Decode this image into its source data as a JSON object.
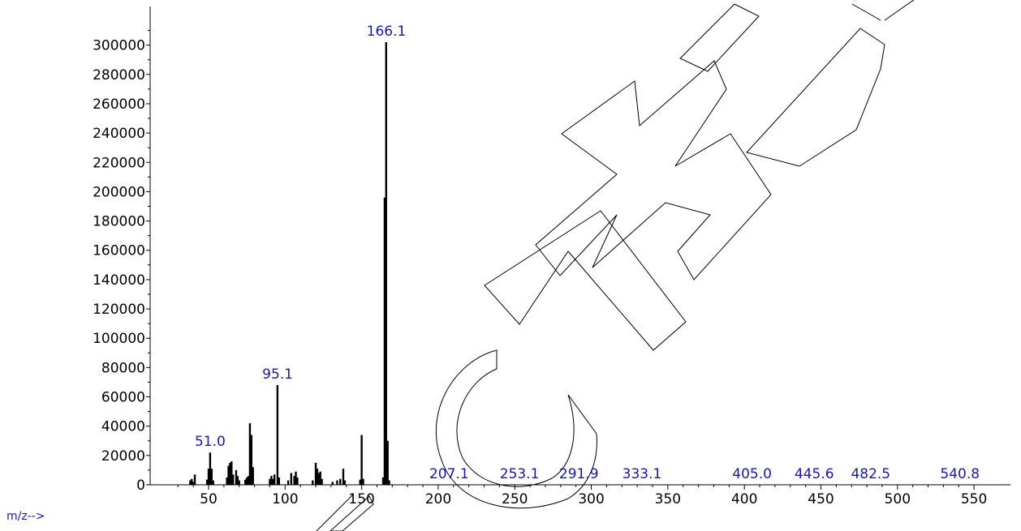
{
  "chart_data": {
    "type": "bar",
    "xlabel": "m/z-->",
    "ylabel": "",
    "xlim": [
      20,
      557
    ],
    "ylim": [
      0,
      310000
    ],
    "x_ticks": [
      "50",
      "100",
      "150",
      "200",
      "250",
      "300",
      "350",
      "400",
      "450",
      "500",
      "550"
    ],
    "y_ticks": [
      "0",
      "20000",
      "40000",
      "60000",
      "80000",
      "100000",
      "120000",
      "140000",
      "160000",
      "180000",
      "200000",
      "220000",
      "240000",
      "260000",
      "280000",
      "300000"
    ],
    "peaks": [
      {
        "x": 38,
        "y": 3000
      },
      {
        "x": 39,
        "y": 4000
      },
      {
        "x": 40,
        "y": 2000
      },
      {
        "x": 41,
        "y": 7000
      },
      {
        "x": 49,
        "y": 3500
      },
      {
        "x": 50,
        "y": 11000
      },
      {
        "x": 51,
        "y": 22000
      },
      {
        "x": 52,
        "y": 11000
      },
      {
        "x": 53,
        "y": 3000
      },
      {
        "x": 62,
        "y": 5000
      },
      {
        "x": 63,
        "y": 13000
      },
      {
        "x": 64,
        "y": 15000
      },
      {
        "x": 65,
        "y": 16000
      },
      {
        "x": 66,
        "y": 7000
      },
      {
        "x": 68,
        "y": 10000
      },
      {
        "x": 69,
        "y": 6000
      },
      {
        "x": 70,
        "y": 3000
      },
      {
        "x": 74,
        "y": 3500
      },
      {
        "x": 75,
        "y": 5000
      },
      {
        "x": 76,
        "y": 6000
      },
      {
        "x": 77,
        "y": 42000
      },
      {
        "x": 78,
        "y": 34000
      },
      {
        "x": 79,
        "y": 12000
      },
      {
        "x": 90,
        "y": 4000
      },
      {
        "x": 91,
        "y": 6000
      },
      {
        "x": 92,
        "y": 4000
      },
      {
        "x": 93,
        "y": 7000
      },
      {
        "x": 95,
        "y": 68000
      },
      {
        "x": 96,
        "y": 5000
      },
      {
        "x": 102,
        "y": 3000
      },
      {
        "x": 104,
        "y": 8000
      },
      {
        "x": 106,
        "y": 6000
      },
      {
        "x": 107,
        "y": 9000
      },
      {
        "x": 108,
        "y": 5000
      },
      {
        "x": 118,
        "y": 3000
      },
      {
        "x": 120,
        "y": 15000
      },
      {
        "x": 121,
        "y": 11000
      },
      {
        "x": 122,
        "y": 8000
      },
      {
        "x": 123,
        "y": 9000
      },
      {
        "x": 124,
        "y": 4000
      },
      {
        "x": 131,
        "y": 2000
      },
      {
        "x": 134,
        "y": 3000
      },
      {
        "x": 136,
        "y": 4000
      },
      {
        "x": 138,
        "y": 11000
      },
      {
        "x": 139,
        "y": 3000
      },
      {
        "x": 149,
        "y": 3500
      },
      {
        "x": 150,
        "y": 34000
      },
      {
        "x": 151,
        "y": 4000
      },
      {
        "x": 164,
        "y": 5000
      },
      {
        "x": 165,
        "y": 196000
      },
      {
        "x": 166,
        "y": 302000
      },
      {
        "x": 167,
        "y": 30000
      },
      {
        "x": 168,
        "y": 3000
      }
    ],
    "peak_labels": [
      {
        "text": "51.0",
        "x": 51,
        "y": 22000
      },
      {
        "text": "95.1",
        "x": 95.1,
        "y": 68000
      },
      {
        "text": "166.1",
        "x": 166.1,
        "y": 302000
      },
      {
        "text": "207.1",
        "x": 207.1,
        "y": 0
      },
      {
        "text": "253.1",
        "x": 253.1,
        "y": 0
      },
      {
        "text": "291.9",
        "x": 291.9,
        "y": 0
      },
      {
        "text": "333.1",
        "x": 333.1,
        "y": 0
      },
      {
        "text": "405.0",
        "x": 405.0,
        "y": 0
      },
      {
        "text": "445.6",
        "x": 445.6,
        "y": 0
      },
      {
        "text": "482.5",
        "x": 482.5,
        "y": 0
      },
      {
        "text": "540.8",
        "x": 540.8,
        "y": 0
      }
    ],
    "grid": false,
    "colors": {
      "bars": "#000000",
      "axis": "#000000",
      "peak_label": "#1a1aa0"
    }
  },
  "watermark": {
    "text": "CIMET"
  }
}
